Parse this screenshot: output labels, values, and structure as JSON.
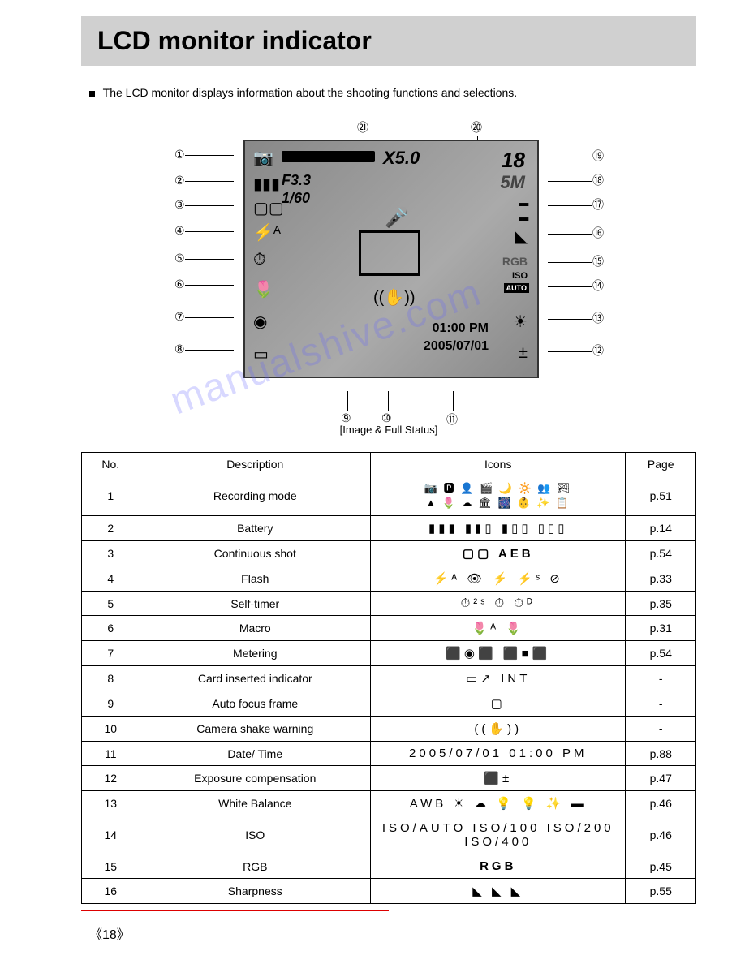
{
  "title": "LCD monitor indicator",
  "intro": "The LCD monitor displays information about the shooting functions and selections.",
  "lcd": {
    "zoom": "X5.0",
    "count": "18",
    "fstop": "F3.3",
    "shutter": "1/60",
    "resolution": "5M",
    "time": "01:00 PM",
    "date": "2005/07/01",
    "rgb": "RGB",
    "iso": "ISO",
    "auto": "AUTO"
  },
  "caption": "[Image & Full Status]",
  "callouts_left": [
    "①",
    "②",
    "③",
    "④",
    "⑤",
    "⑥",
    "⑦",
    "⑧"
  ],
  "callouts_right": [
    "⑲",
    "⑱",
    "⑰",
    "⑯",
    "⑮",
    "⑭",
    "⑬",
    "⑫"
  ],
  "callouts_top": [
    "㉑",
    "⑳"
  ],
  "callouts_bottom": [
    "⑨",
    "⑩",
    "⑪"
  ],
  "table": {
    "headers": [
      "No.",
      "Description",
      "Icons",
      "Page"
    ],
    "rows": [
      {
        "no": "1",
        "desc": "Recording mode",
        "icons": "📷 🅿 👤 🎬 🌙 🔆 👥 🏞\n▲ 🌷 ☁ 🏛 🎆 👶 ✨ 📋",
        "page": "p.51"
      },
      {
        "no": "2",
        "desc": "Battery",
        "icons": "▮▮▮  ▮▮▯  ▮▯▯  ▯▯▯",
        "page": "p.14"
      },
      {
        "no": "3",
        "desc": "Continuous shot",
        "icons": "▢▢  AEB",
        "page": "p.54"
      },
      {
        "no": "4",
        "desc": "Flash",
        "icons": "⚡ᴬ  👁  ⚡  ⚡ˢ  ⊘",
        "page": "p.33"
      },
      {
        "no": "5",
        "desc": "Self-timer",
        "icons": "⏱²ˢ  ⏱  ⏱ᴰ",
        "page": "p.35"
      },
      {
        "no": "6",
        "desc": "Macro",
        "icons": "🌷ᴬ  🌷",
        "page": "p.31"
      },
      {
        "no": "7",
        "desc": "Metering",
        "icons": "⬛◉⬛  ⬛■⬛",
        "page": "p.54"
      },
      {
        "no": "8",
        "desc": "Card inserted indicator",
        "icons": "▭↗  ⅠNT",
        "page": "-"
      },
      {
        "no": "9",
        "desc": "Auto focus frame",
        "icons": "▢",
        "page": "-"
      },
      {
        "no": "10",
        "desc": "Camera shake warning",
        "icons": "((✋))",
        "page": "-"
      },
      {
        "no": "11",
        "desc": "Date/ Time",
        "icons": "2005/07/01   01:00 PM",
        "page": "p.88"
      },
      {
        "no": "12",
        "desc": "Exposure compensation",
        "icons": "⬛±",
        "page": "p.47"
      },
      {
        "no": "13",
        "desc": "White Balance",
        "icons": "AWB  ☀  ☁  💡  💡  ✨  ▬",
        "page": "p.46"
      },
      {
        "no": "14",
        "desc": "ISO",
        "icons": "ISO/AUTO  ISO/100  ISO/200  ISO/400",
        "page": "p.46"
      },
      {
        "no": "15",
        "desc": "RGB",
        "icons": "RGB",
        "page": "p.45"
      },
      {
        "no": "16",
        "desc": "Sharpness",
        "icons": "◣  ◣  ◣",
        "page": "p.55"
      }
    ]
  },
  "page_number": "《18》",
  "watermark": "manualshive.com"
}
